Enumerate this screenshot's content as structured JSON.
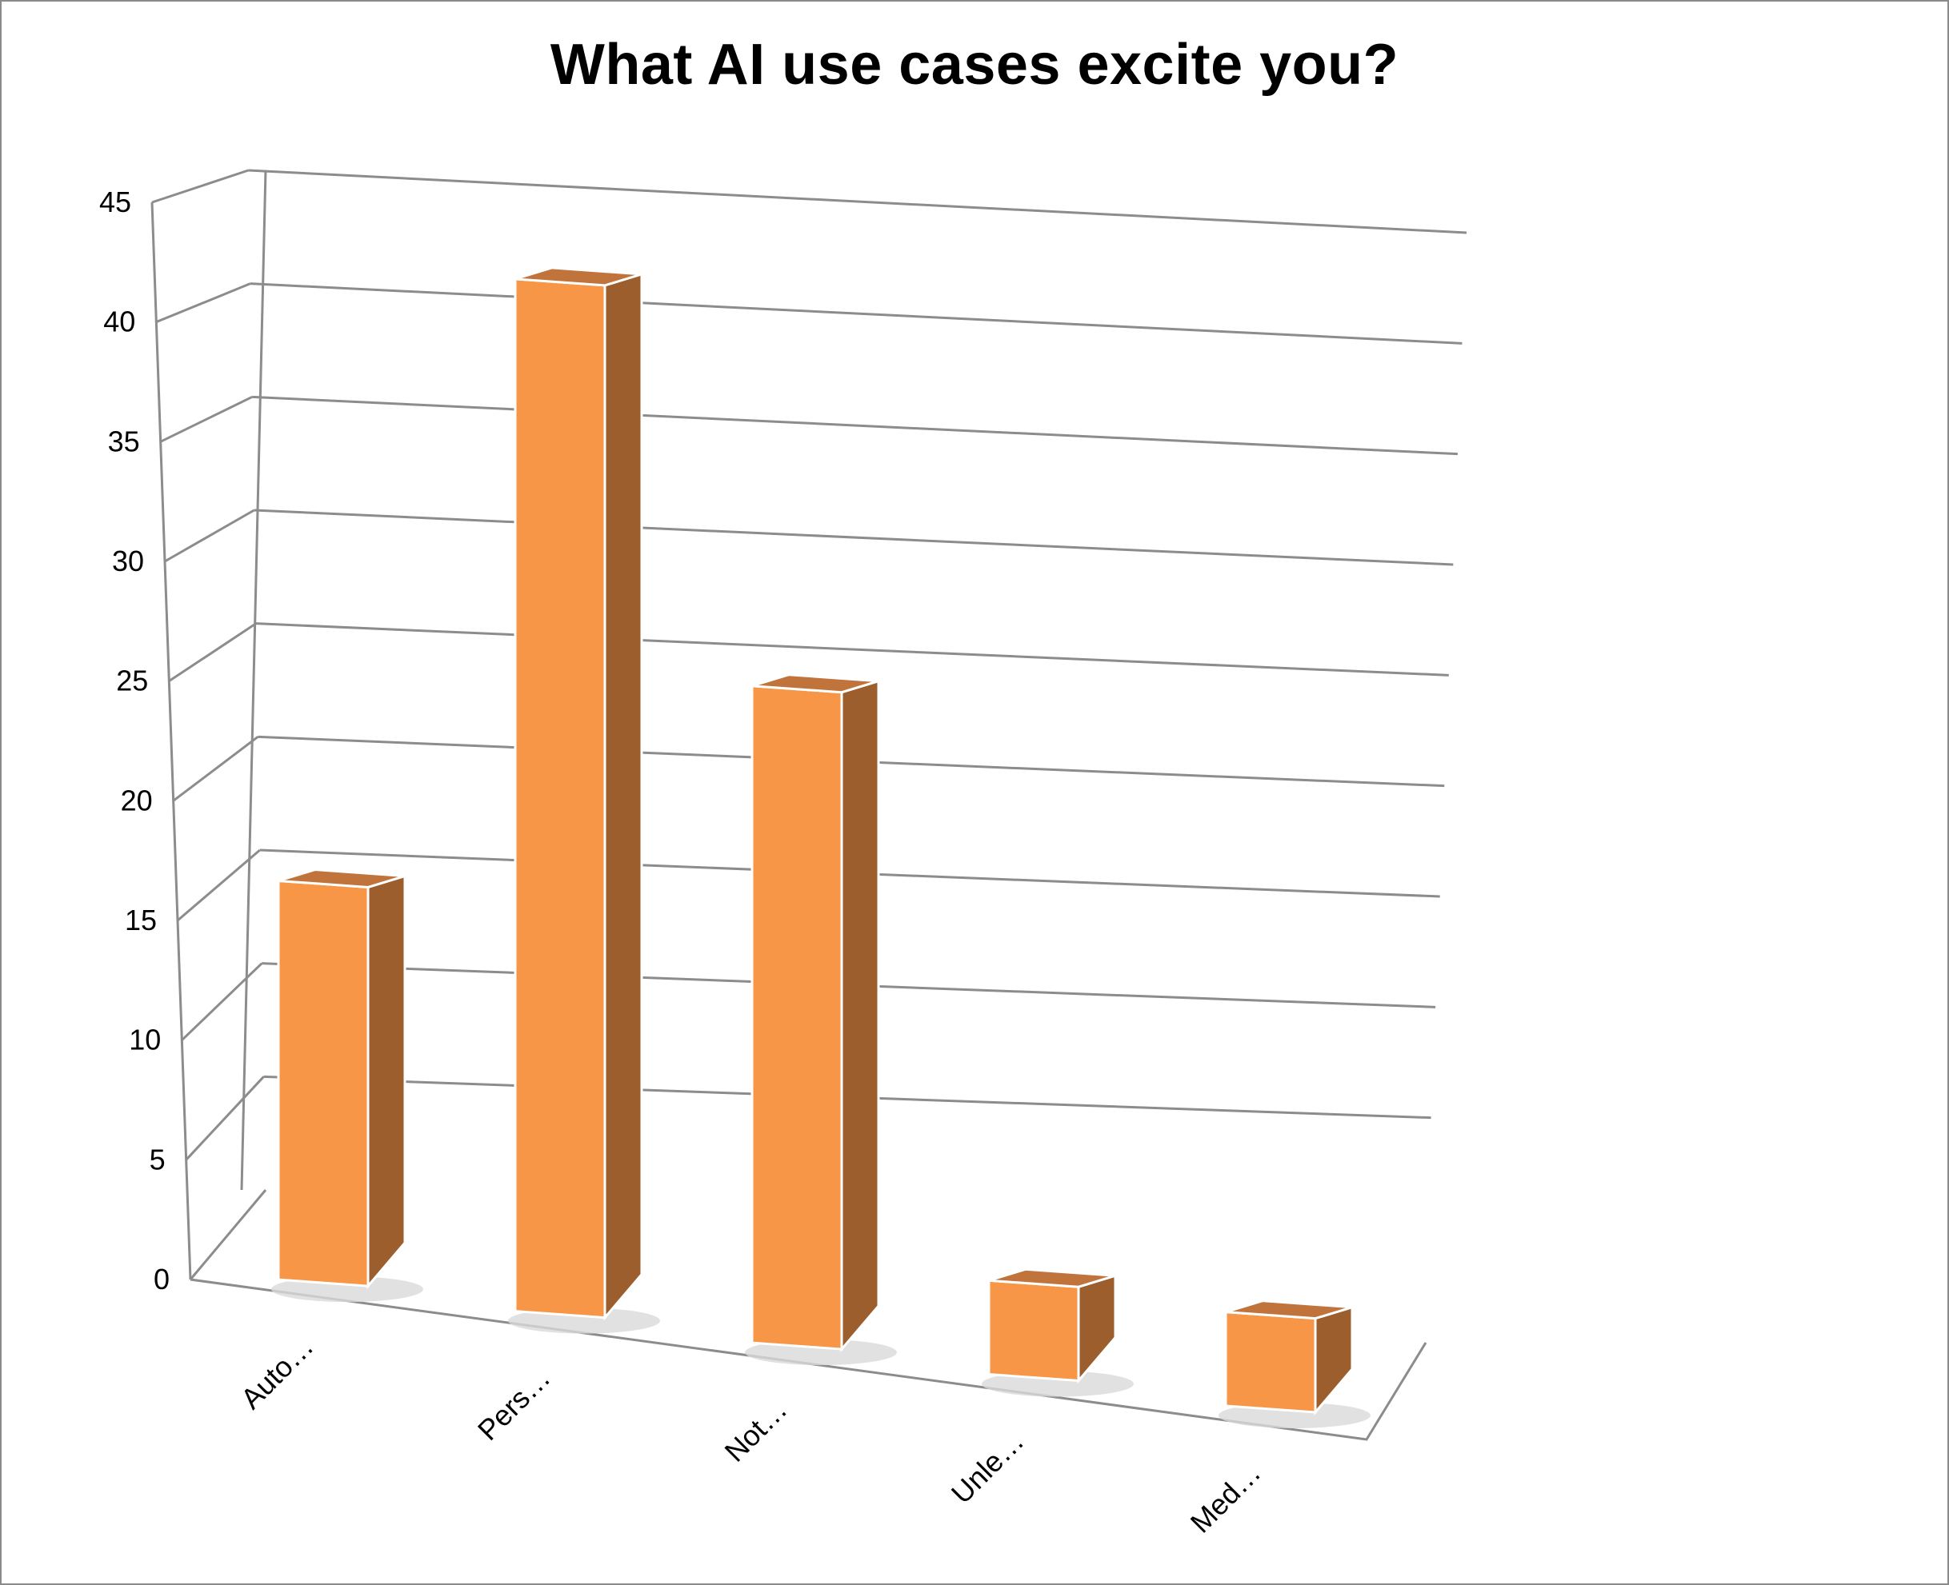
{
  "chart_data": {
    "type": "bar",
    "title": "What AI use cases excite you?",
    "xlabel": "",
    "ylabel": "",
    "categories": [
      "Auto…",
      "Pers…",
      "Not…",
      "Unle…",
      "Med…"
    ],
    "values": [
      17,
      44,
      28,
      4,
      4
    ],
    "ylim": [
      0,
      45
    ],
    "yticks": [
      "0",
      "5",
      "10",
      "15",
      "20",
      "25",
      "30",
      "35",
      "40",
      "45"
    ],
    "grid": true,
    "legend": "none",
    "style": "3d-column",
    "colors": {
      "bar_front": "#F79646",
      "bar_side": "#9C5E2C",
      "bar_top": "#C0733A",
      "bar_edge": "#ffffff",
      "grid": "#8c8c8c",
      "shadow": "#d9d9d9"
    }
  }
}
